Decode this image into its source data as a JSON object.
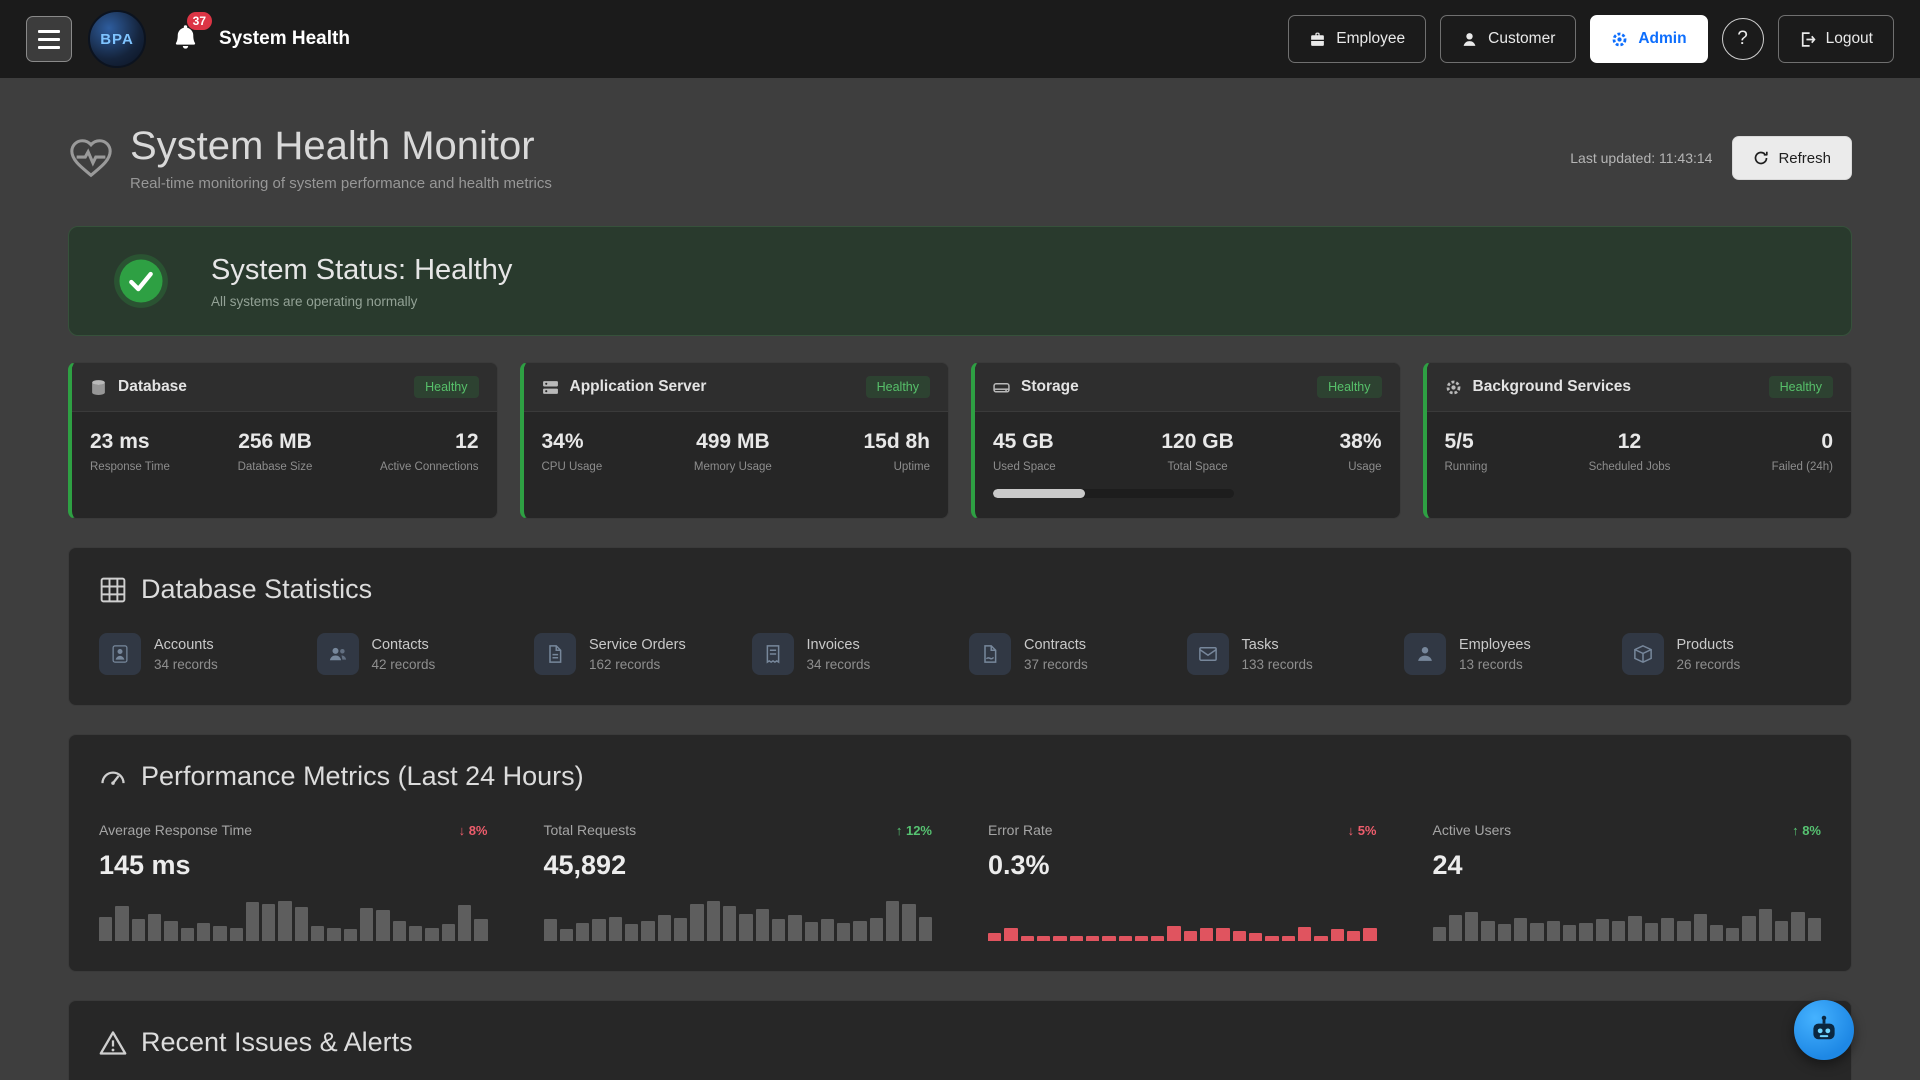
{
  "navbar": {
    "logo_text": "BPA",
    "notifications": "37",
    "title": "System Health",
    "employee": "Employee",
    "customer": "Customer",
    "admin": "Admin",
    "help": "?",
    "logout": "Logout"
  },
  "header": {
    "title": "System Health Monitor",
    "subtitle": "Real-time monitoring of system performance and health metrics",
    "last_updated": "Last updated: 11:43:14",
    "refresh": "Refresh"
  },
  "status_banner": {
    "title": "System Status: Healthy",
    "subtitle": "All systems are operating normally"
  },
  "status_cards": [
    {
      "title": "Database",
      "badge": "Healthy",
      "metrics": [
        {
          "value": "23 ms",
          "label": "Response Time"
        },
        {
          "value": "256 MB",
          "label": "Database Size"
        },
        {
          "value": "12",
          "label": "Active Connections"
        }
      ]
    },
    {
      "title": "Application Server",
      "badge": "Healthy",
      "metrics": [
        {
          "value": "34%",
          "label": "CPU Usage"
        },
        {
          "value": "499 MB",
          "label": "Memory Usage"
        },
        {
          "value": "15d 8h",
          "label": "Uptime"
        }
      ]
    },
    {
      "title": "Storage",
      "badge": "Healthy",
      "progress_percent": 38,
      "metrics": [
        {
          "value": "45 GB",
          "label": "Used Space"
        },
        {
          "value": "120 GB",
          "label": "Total Space"
        },
        {
          "value": "38%",
          "label": "Usage"
        }
      ]
    },
    {
      "title": "Background Services",
      "badge": "Healthy",
      "metrics": [
        {
          "value": "5/5",
          "label": "Running"
        },
        {
          "value": "12",
          "label": "Scheduled Jobs"
        },
        {
          "value": "0",
          "label": "Failed (24h)"
        }
      ]
    }
  ],
  "database_stats": {
    "title": "Database Statistics",
    "items": [
      {
        "label": "Accounts",
        "count": "34 records"
      },
      {
        "label": "Contacts",
        "count": "42 records"
      },
      {
        "label": "Service Orders",
        "count": "162 records"
      },
      {
        "label": "Invoices",
        "count": "34 records"
      },
      {
        "label": "Contracts",
        "count": "37 records"
      },
      {
        "label": "Tasks",
        "count": "133 records"
      },
      {
        "label": "Employees",
        "count": "13 records"
      },
      {
        "label": "Products",
        "count": "26 records"
      }
    ]
  },
  "performance": {
    "title": "Performance Metrics (Last 24 Hours)",
    "metrics": [
      {
        "label": "Average Response Time",
        "change": "↓ 8%",
        "direction": "down",
        "value": "145 ms",
        "bar_color": "#5e5e5e",
        "bars": [
          0.55,
          0.8,
          0.5,
          0.62,
          0.45,
          0.3,
          0.42,
          0.35,
          0.3,
          0.88,
          0.85,
          0.92,
          0.78,
          0.35,
          0.3,
          0.28,
          0.75,
          0.7,
          0.45,
          0.35,
          0.3,
          0.38,
          0.82,
          0.5
        ]
      },
      {
        "label": "Total Requests",
        "change": "↑ 12%",
        "direction": "up",
        "value": "45,892",
        "bar_color": "#5e5e5e",
        "bars": [
          0.5,
          0.28,
          0.42,
          0.5,
          0.55,
          0.38,
          0.45,
          0.6,
          0.52,
          0.85,
          0.92,
          0.8,
          0.62,
          0.72,
          0.5,
          0.58,
          0.44,
          0.5,
          0.4,
          0.46,
          0.52,
          0.9,
          0.84,
          0.55
        ]
      },
      {
        "label": "Error Rate",
        "change": "↓ 5%",
        "direction": "down",
        "value": "0.3%",
        "bar_color": "#e0545f",
        "bars": [
          0.18,
          0.3,
          0.12,
          0.12,
          0.12,
          0.12,
          0.12,
          0.12,
          0.12,
          0.12,
          0.12,
          0.35,
          0.22,
          0.3,
          0.3,
          0.22,
          0.18,
          0.12,
          0.12,
          0.32,
          0.12,
          0.28,
          0.22,
          0.3
        ]
      },
      {
        "label": "Active Users",
        "change": "↑ 8%",
        "direction": "up",
        "value": "24",
        "bar_color": "#5e5e5e",
        "bars": [
          0.32,
          0.58,
          0.66,
          0.45,
          0.38,
          0.52,
          0.42,
          0.46,
          0.36,
          0.42,
          0.5,
          0.46,
          0.56,
          0.4,
          0.52,
          0.46,
          0.62,
          0.36,
          0.3,
          0.56,
          0.72,
          0.46,
          0.66,
          0.52
        ]
      }
    ]
  },
  "alerts": {
    "title": "Recent Issues & Alerts"
  },
  "colors": {
    "accent_green": "#2ea043",
    "danger_red": "#dc3545",
    "admin_blue": "#0d6efd",
    "fab_blue": "#1e88e5"
  }
}
